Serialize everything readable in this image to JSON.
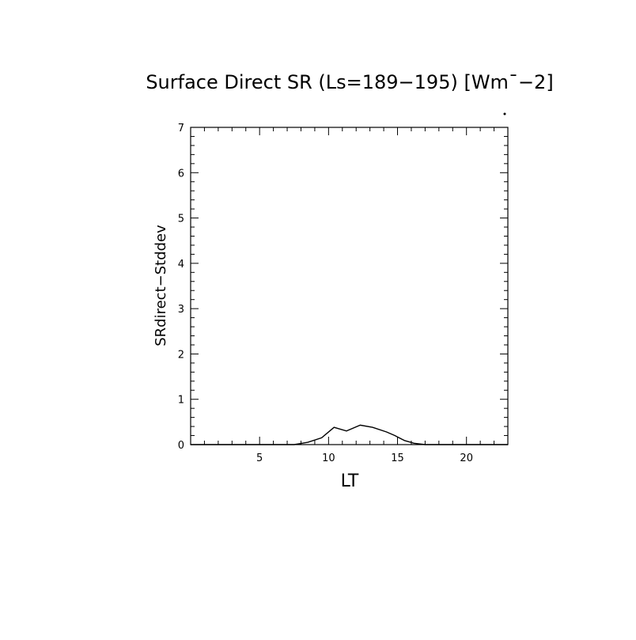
{
  "chart_data": {
    "type": "line",
    "title": "Surface Direct SR (Ls=189−195) [Wm¯−2]",
    "xlabel": "LT",
    "ylabel": "SRdirect−Stddev",
    "xlim": [
      0,
      23
    ],
    "ylim": [
      0,
      7
    ],
    "x_ticks": [
      5,
      10,
      15,
      20
    ],
    "y_ticks": [
      0,
      1,
      2,
      3,
      4,
      5,
      6,
      7
    ],
    "grid": false,
    "x": [
      0,
      1,
      2,
      3,
      4,
      5,
      6,
      7,
      7.5,
      8.5,
      9.5,
      10.4,
      11.3,
      12.3,
      13.2,
      14.2,
      14.8,
      15.5,
      16.2,
      17,
      18,
      19,
      20,
      21,
      22,
      23
    ],
    "series": [
      {
        "values": [
          0,
          0,
          0,
          0,
          0,
          0,
          0,
          0,
          0,
          0.05,
          0.15,
          0.38,
          0.3,
          0.43,
          0.38,
          0.28,
          0.2,
          0.09,
          0.03,
          0,
          0,
          0,
          0,
          0,
          0,
          0
        ]
      }
    ]
  },
  "colors": {
    "line": "#000000",
    "axes": "#000000",
    "background": "#ffffff"
  }
}
